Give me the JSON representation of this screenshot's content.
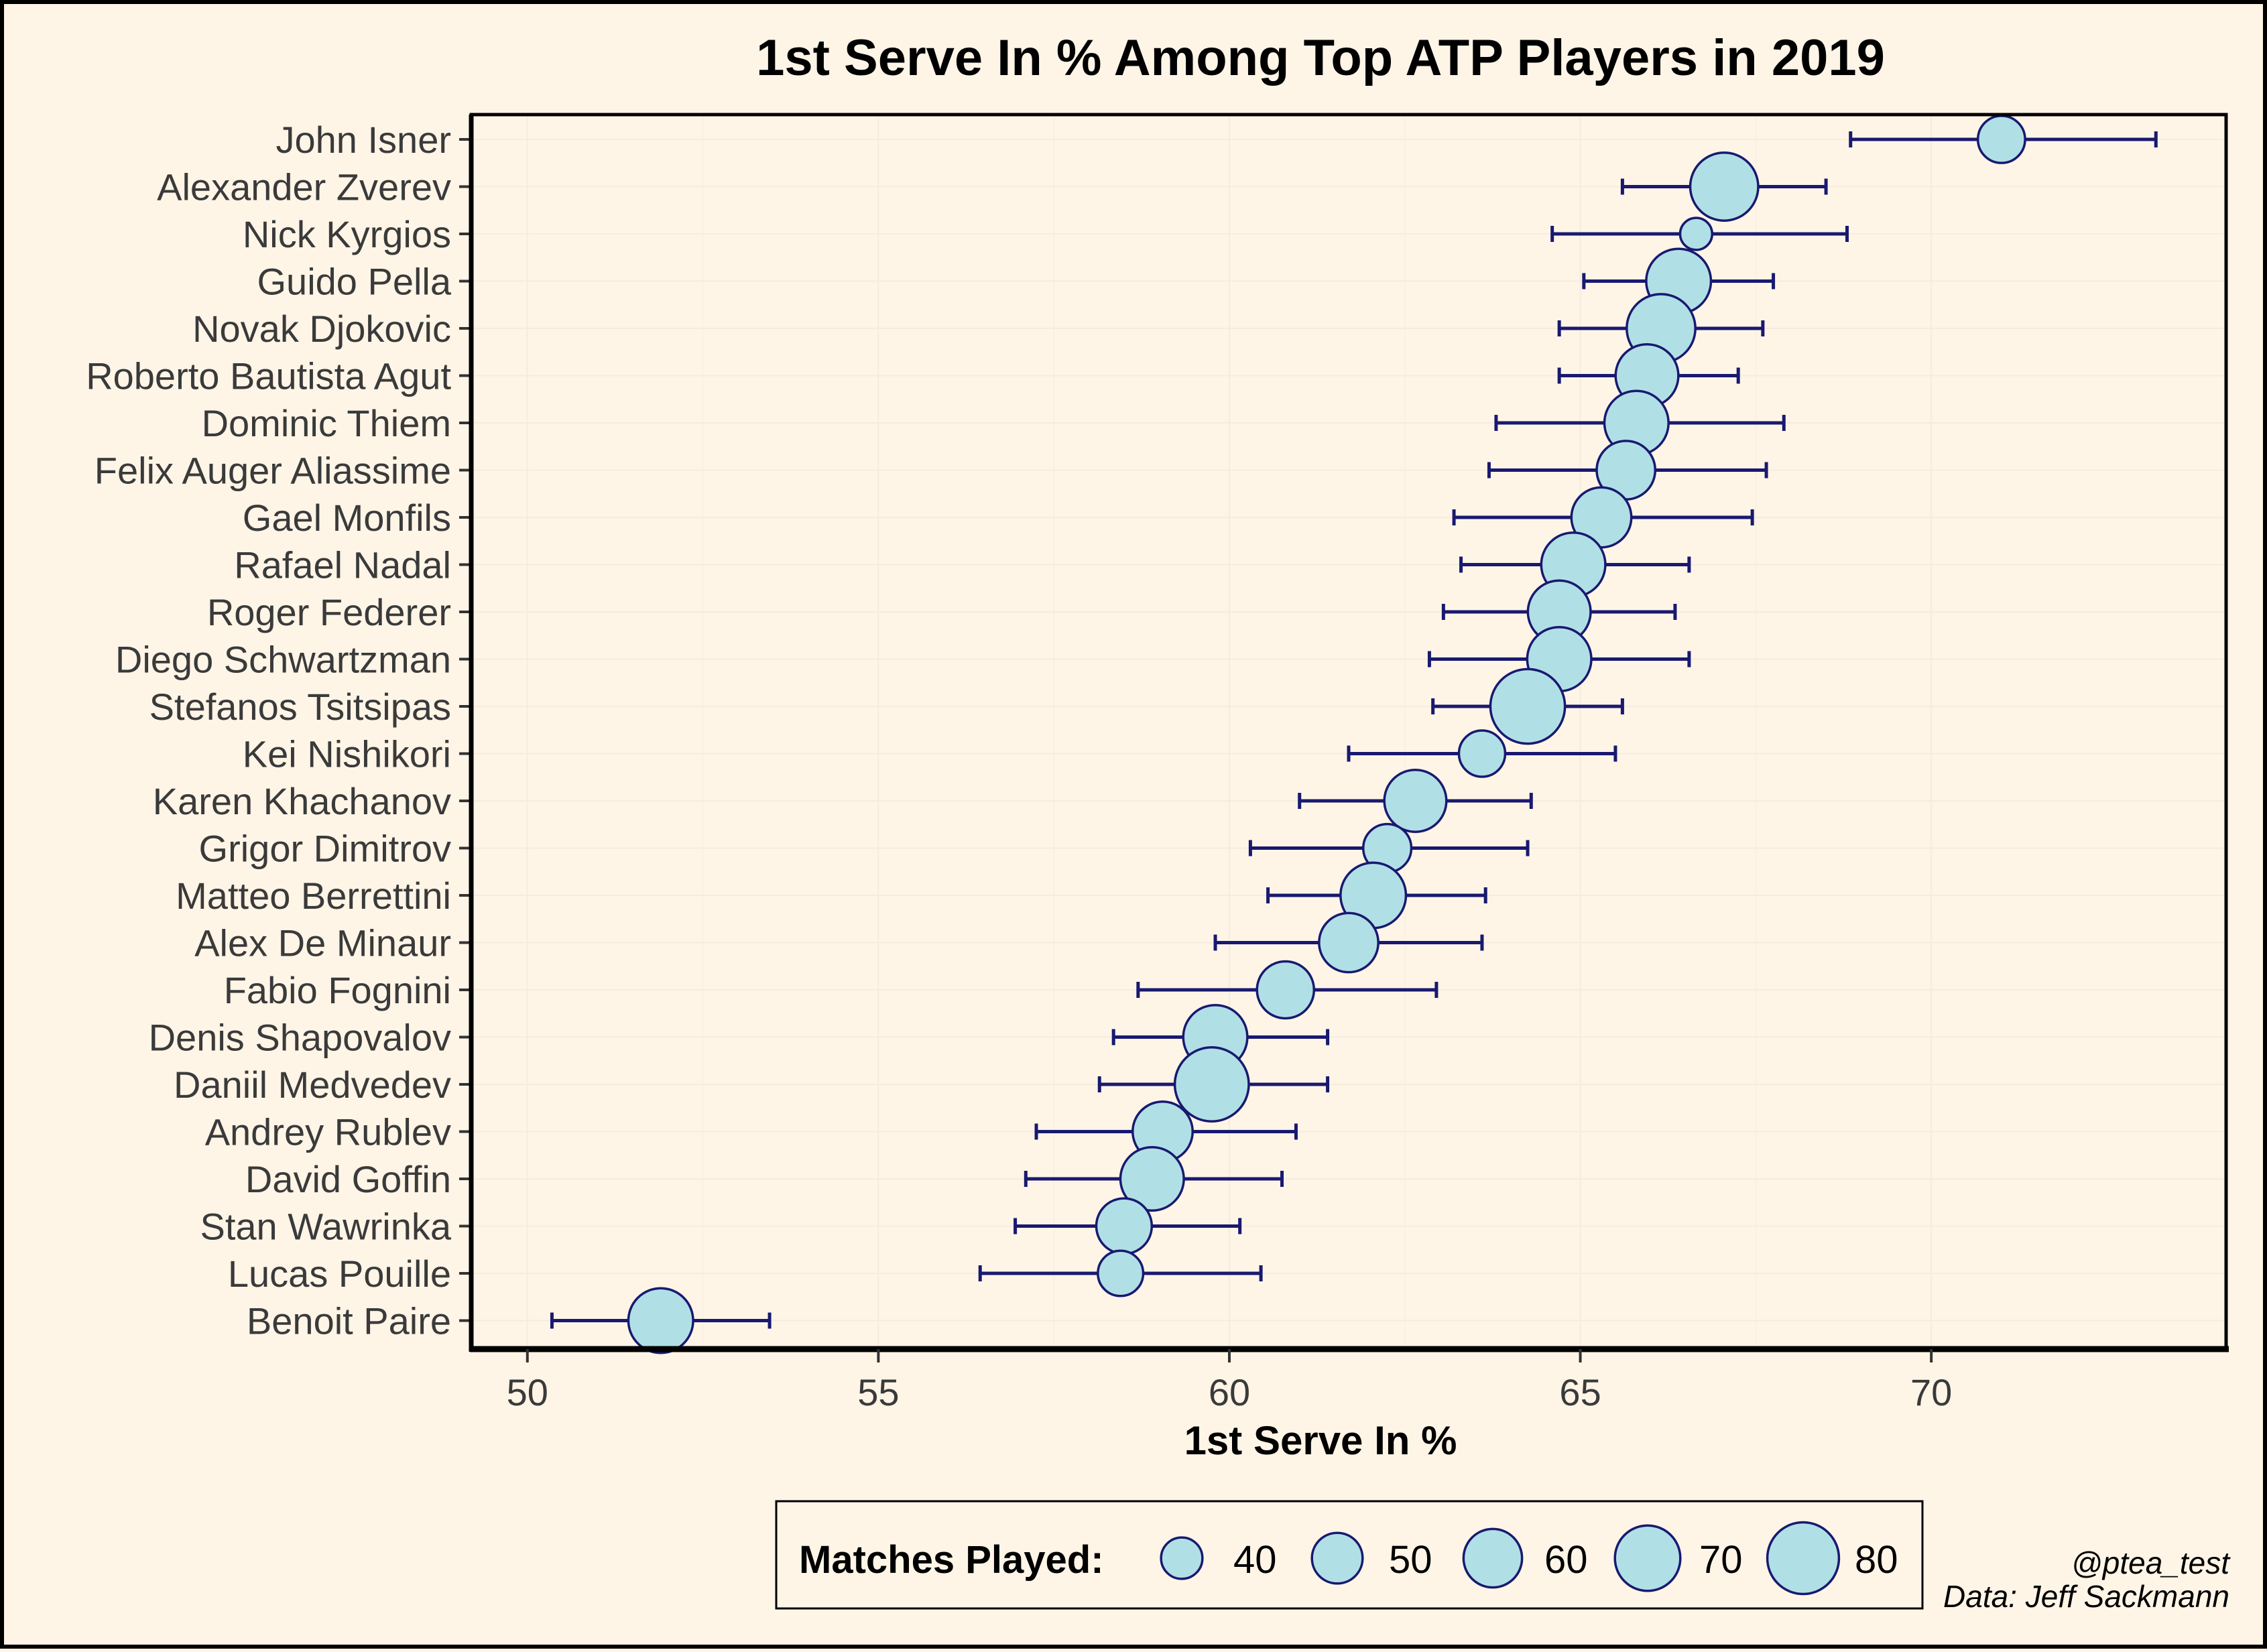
{
  "chart_data": {
    "type": "scatter",
    "title": "1st Serve In % Among Top ATP Players in 2019",
    "xlabel": "1st Serve In %",
    "ylabel": "",
    "xlim": [
      49.2,
      74.2
    ],
    "x_ticks": [
      "50",
      "55",
      "60",
      "65",
      "70"
    ],
    "x_tick_values": [
      50,
      55,
      60,
      65,
      70
    ],
    "grid": true,
    "legend_position": "bottom",
    "categories": [
      "John Isner",
      "Alexander Zverev",
      "Nick Kyrgios",
      "Guido Pella",
      "Novak Djokovic",
      "Roberto Bautista Agut",
      "Dominic Thiem",
      "Felix Auger Aliassime",
      "Gael Monfils",
      "Rafael Nadal",
      "Roger Federer",
      "Diego Schwartzman",
      "Stefanos Tsitsipas",
      "Kei Nishikori",
      "Karen Khachanov",
      "Grigor Dimitrov",
      "Matteo Berrettini",
      "Alex De Minaur",
      "Fabio Fognini",
      "Denis Shapovalov",
      "Daniil Medvedev",
      "Andrey Rublev",
      "David Goffin",
      "Stan Wawrinka",
      "Lucas Pouille",
      "Benoit Paire"
    ],
    "series": [
      {
        "name": "1st Serve In %",
        "values": [
          71.0,
          67.05,
          66.65,
          66.4,
          66.15,
          65.95,
          65.8,
          65.65,
          65.3,
          64.9,
          64.7,
          64.7,
          64.25,
          63.6,
          62.65,
          62.25,
          62.05,
          61.7,
          60.8,
          59.8,
          59.75,
          59.05,
          58.9,
          58.5,
          58.45,
          51.9
        ]
      },
      {
        "name": "lower",
        "values": [
          68.85,
          65.6,
          64.6,
          65.05,
          64.7,
          64.7,
          63.8,
          63.7,
          63.2,
          63.3,
          63.05,
          62.85,
          62.9,
          61.7,
          61.0,
          60.3,
          60.55,
          59.8,
          58.7,
          58.35,
          58.15,
          57.25,
          57.1,
          56.95,
          56.45,
          50.35
        ]
      },
      {
        "name": "upper",
        "values": [
          73.2,
          68.5,
          68.8,
          67.75,
          67.6,
          67.25,
          67.9,
          67.65,
          67.45,
          66.55,
          66.35,
          66.55,
          65.6,
          65.5,
          64.3,
          64.25,
          63.65,
          63.6,
          62.95,
          61.4,
          61.4,
          60.95,
          60.75,
          60.15,
          60.45,
          53.45
        ]
      },
      {
        "name": "Matches Played:",
        "values": [
          46,
          74,
          32,
          69,
          75,
          66,
          68,
          60,
          62,
          68,
          66,
          68,
          85,
          45,
          65,
          47,
          70,
          61,
          58,
          68,
          84,
          62,
          67,
          56,
          44,
          69
        ]
      }
    ],
    "legend": {
      "title": "Matches Played:",
      "labels": [
        "40",
        "50",
        "60",
        "70",
        "80"
      ],
      "values": [
        40,
        50,
        60,
        70,
        80
      ]
    },
    "caption": [
      "@ptea_test",
      "Data: Jeff Sackmann"
    ],
    "colors": {
      "background": "#fef5e7",
      "point_fill": "#b0e0e6",
      "point_stroke": "#191970",
      "errorbar": "#191970",
      "grid": "#f5ecdf",
      "axis": "#000000",
      "text": "#3a3a3a"
    }
  }
}
